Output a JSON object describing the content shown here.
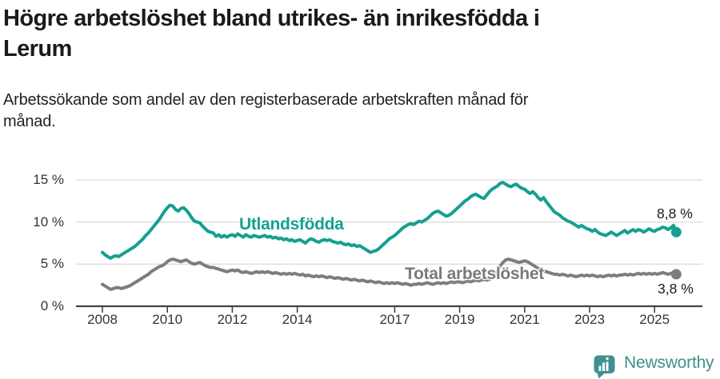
{
  "header": {
    "title_line1": "Högre arbetslöshet bland utrikes- än inrikesfödda i",
    "title_line2": "Lerum",
    "subtitle_line1": "Arbetssökande som andel av den registerbaserade arbetskraften månad för",
    "subtitle_line2": "månad."
  },
  "chart_data": {
    "type": "line",
    "title": "Högre arbetslöshet bland utrikes- än inrikesfödda i Lerum",
    "subtitle": "Arbetssökande som andel av den registerbaserade arbetskraften månad för månad.",
    "unit": "%",
    "x_start": "2008-01",
    "x_end": "2025-09",
    "x_interval": "monthly",
    "x_range_years": [
      2008.0,
      2025.75
    ],
    "ylim": [
      0,
      15
    ],
    "grid": true,
    "legend_position": "inline-annotations",
    "colors": {
      "grid": "#dcdcdc",
      "axis": "#444444",
      "tick_text": "#333333"
    },
    "y_ticks": [
      {
        "label": "0 %",
        "value": 0
      },
      {
        "label": "5 %",
        "value": 5
      },
      {
        "label": "10 %",
        "value": 10
      },
      {
        "label": "15 %",
        "value": 15
      }
    ],
    "x_ticks": [
      {
        "label": "2008",
        "year": 2008
      },
      {
        "label": "2010",
        "year": 2010
      },
      {
        "label": "2012",
        "year": 2012
      },
      {
        "label": "2014",
        "year": 2014
      },
      {
        "label": "2017",
        "year": 2017
      },
      {
        "label": "2019",
        "year": 2019
      },
      {
        "label": "2021",
        "year": 2021
      },
      {
        "label": "2023",
        "year": 2023
      },
      {
        "label": "2025",
        "year": 2025
      }
    ],
    "series": [
      {
        "id": "utlandsfodda",
        "name": "Utlandsfödda",
        "color": "#14a090",
        "end_label": "8,8 %",
        "end_value": 8.8,
        "values": [
          6.4,
          6.1,
          5.9,
          5.7,
          5.9,
          6.0,
          5.9,
          6.1,
          6.3,
          6.5,
          6.7,
          6.9,
          7.1,
          7.4,
          7.7,
          8.0,
          8.4,
          8.7,
          9.1,
          9.5,
          9.9,
          10.3,
          10.8,
          11.3,
          11.7,
          12.0,
          11.9,
          11.5,
          11.3,
          11.6,
          11.7,
          11.4,
          11.0,
          10.5,
          10.1,
          10.0,
          9.9,
          9.5,
          9.2,
          8.9,
          8.8,
          8.7,
          8.3,
          8.5,
          8.2,
          8.4,
          8.2,
          8.4,
          8.5,
          8.3,
          8.6,
          8.4,
          8.2,
          8.5,
          8.3,
          8.2,
          8.4,
          8.3,
          8.2,
          8.3,
          8.4,
          8.2,
          8.3,
          8.1,
          8.2,
          8.0,
          8.1,
          7.9,
          8.0,
          7.8,
          7.9,
          7.7,
          7.8,
          7.9,
          7.7,
          7.5,
          7.8,
          8.0,
          7.9,
          7.7,
          7.6,
          7.8,
          7.9,
          7.8,
          7.9,
          7.7,
          7.6,
          7.5,
          7.6,
          7.4,
          7.3,
          7.4,
          7.2,
          7.3,
          7.1,
          7.2,
          7.0,
          6.8,
          6.6,
          6.4,
          6.5,
          6.6,
          6.8,
          7.1,
          7.4,
          7.7,
          8.0,
          8.2,
          8.4,
          8.7,
          9.0,
          9.3,
          9.5,
          9.7,
          9.8,
          9.7,
          9.9,
          10.1,
          10.0,
          10.2,
          10.4,
          10.7,
          11.0,
          11.2,
          11.3,
          11.1,
          10.9,
          10.7,
          10.8,
          11.0,
          11.3,
          11.6,
          11.9,
          12.2,
          12.5,
          12.7,
          13.0,
          13.2,
          13.3,
          13.1,
          12.9,
          12.8,
          13.2,
          13.6,
          13.9,
          14.1,
          14.3,
          14.6,
          14.7,
          14.5,
          14.3,
          14.2,
          14.4,
          14.5,
          14.2,
          14.0,
          13.9,
          13.6,
          13.4,
          13.6,
          13.3,
          12.9,
          12.6,
          12.9,
          12.4,
          12.0,
          11.6,
          11.2,
          11.0,
          10.8,
          10.5,
          10.3,
          10.1,
          10.0,
          9.8,
          9.6,
          9.4,
          9.6,
          9.4,
          9.2,
          9.1,
          8.9,
          9.1,
          8.8,
          8.6,
          8.5,
          8.4,
          8.6,
          8.8,
          8.6,
          8.4,
          8.6,
          8.8,
          9.0,
          8.7,
          8.9,
          9.1,
          8.9,
          9.1,
          9.0,
          8.8,
          9.0,
          9.2,
          9.0,
          8.9,
          9.1,
          9.2,
          9.4,
          9.3,
          9.1,
          9.3,
          9.6,
          8.8
        ]
      },
      {
        "id": "total",
        "name": "Total arbetslöshet",
        "color": "#7d7d7d",
        "end_label": "3,8 %",
        "end_value": 3.8,
        "values": [
          2.6,
          2.4,
          2.2,
          2.0,
          2.1,
          2.2,
          2.2,
          2.1,
          2.2,
          2.3,
          2.4,
          2.6,
          2.8,
          3.0,
          3.2,
          3.4,
          3.6,
          3.8,
          4.1,
          4.3,
          4.5,
          4.7,
          4.8,
          5.0,
          5.3,
          5.5,
          5.6,
          5.5,
          5.4,
          5.3,
          5.4,
          5.5,
          5.3,
          5.1,
          5.0,
          5.1,
          5.2,
          5.0,
          4.8,
          4.7,
          4.6,
          4.6,
          4.5,
          4.4,
          4.3,
          4.2,
          4.1,
          4.2,
          4.3,
          4.2,
          4.3,
          4.1,
          4.0,
          4.1,
          4.0,
          3.9,
          4.0,
          4.1,
          4.0,
          4.1,
          4.0,
          4.1,
          4.0,
          3.9,
          4.0,
          3.9,
          3.8,
          3.9,
          3.8,
          3.9,
          3.8,
          3.9,
          3.8,
          3.7,
          3.8,
          3.6,
          3.7,
          3.6,
          3.5,
          3.6,
          3.5,
          3.6,
          3.5,
          3.4,
          3.5,
          3.4,
          3.3,
          3.4,
          3.3,
          3.2,
          3.3,
          3.2,
          3.1,
          3.2,
          3.1,
          3.0,
          3.1,
          3.0,
          2.9,
          3.0,
          2.9,
          2.8,
          2.9,
          2.8,
          2.7,
          2.8,
          2.7,
          2.8,
          2.7,
          2.8,
          2.7,
          2.6,
          2.7,
          2.6,
          2.5,
          2.6,
          2.6,
          2.7,
          2.6,
          2.7,
          2.8,
          2.7,
          2.6,
          2.7,
          2.8,
          2.7,
          2.8,
          2.7,
          2.8,
          2.9,
          2.8,
          2.9,
          2.9,
          2.8,
          2.9,
          3.0,
          2.9,
          3.0,
          3.1,
          3.0,
          3.1,
          3.2,
          3.1,
          3.2,
          3.4,
          3.6,
          4.2,
          4.8,
          5.2,
          5.5,
          5.6,
          5.5,
          5.4,
          5.3,
          5.2,
          5.3,
          5.4,
          5.3,
          5.1,
          4.9,
          4.7,
          4.5,
          4.3,
          4.2,
          4.1,
          4.0,
          3.9,
          3.8,
          3.8,
          3.7,
          3.8,
          3.7,
          3.6,
          3.7,
          3.6,
          3.5,
          3.6,
          3.7,
          3.6,
          3.7,
          3.6,
          3.7,
          3.6,
          3.5,
          3.6,
          3.5,
          3.6,
          3.7,
          3.6,
          3.7,
          3.6,
          3.7,
          3.7,
          3.8,
          3.7,
          3.8,
          3.7,
          3.8,
          3.9,
          3.8,
          3.9,
          3.8,
          3.9,
          3.8,
          3.9,
          3.8,
          3.9,
          4.0,
          3.9,
          3.8,
          3.9,
          4.0,
          3.8
        ]
      }
    ]
  },
  "footer": {
    "brand": "Newsworthy",
    "brand_color": "#3f908e"
  }
}
